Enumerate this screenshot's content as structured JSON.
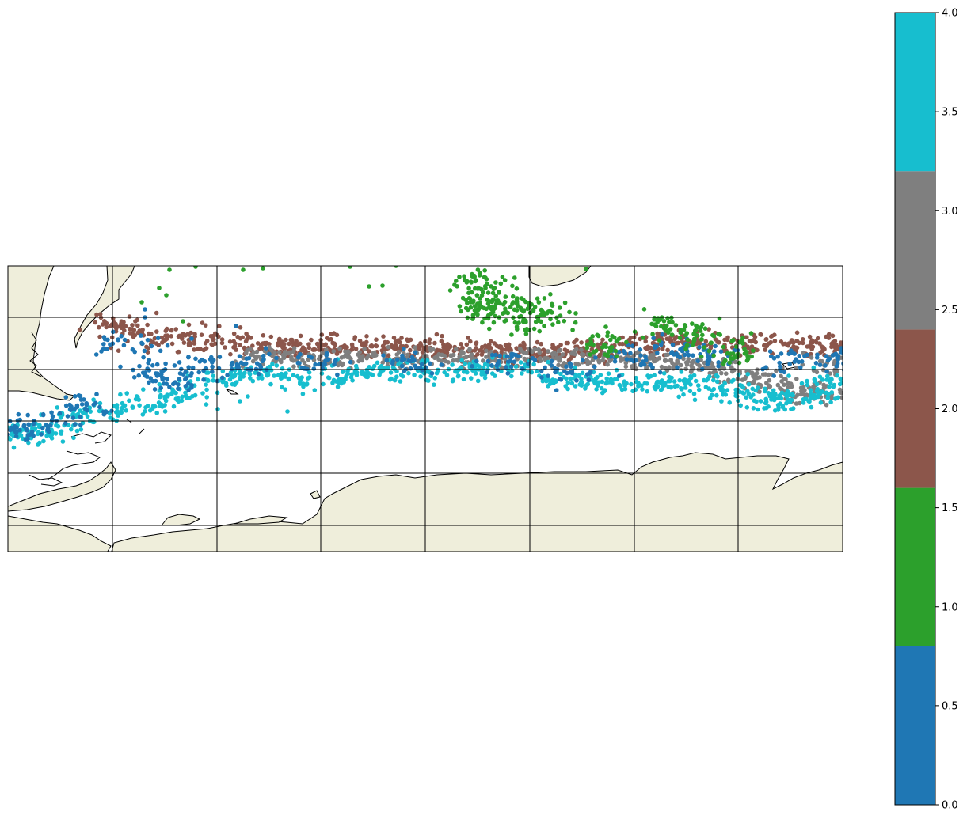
{
  "colors": {
    "land": "#efeedb",
    "coast": "#000000",
    "grid": "#000000",
    "class_0": "#1f77b4",
    "class_1": "#2ca02c",
    "class_2": "#8c564b",
    "class_3": "#7f7f7f",
    "class_4": "#17becf"
  },
  "map": {
    "grid_columns": 8,
    "grid_rows": 5.5,
    "land": [
      "south-america-tip",
      "antarctic-peninsula",
      "antarctica",
      "africa-tip"
    ]
  },
  "chart_data": {
    "type": "scatter",
    "title": "",
    "xlabel": "",
    "ylabel": "",
    "colorbar": {
      "range": [
        0.0,
        4.0
      ],
      "ticks": [
        "0.0",
        "0.5",
        "1.0",
        "1.5",
        "2.0",
        "2.5",
        "3.0",
        "3.5",
        "4.0"
      ],
      "ticks_values": [
        0.0,
        0.5,
        1.0,
        1.5,
        2.0,
        2.5,
        3.0,
        3.5,
        4.0
      ],
      "bins": [
        {
          "from": 0.0,
          "to": 0.8,
          "color": "#1f77b4"
        },
        {
          "from": 0.8,
          "to": 1.6,
          "color": "#2ca02c"
        },
        {
          "from": 1.6,
          "to": 2.4,
          "color": "#8c564b"
        },
        {
          "from": 2.4,
          "to": 3.2,
          "color": "#7f7f7f"
        },
        {
          "from": 3.2,
          "to": 4.0,
          "color": "#17becf"
        }
      ]
    }
  }
}
